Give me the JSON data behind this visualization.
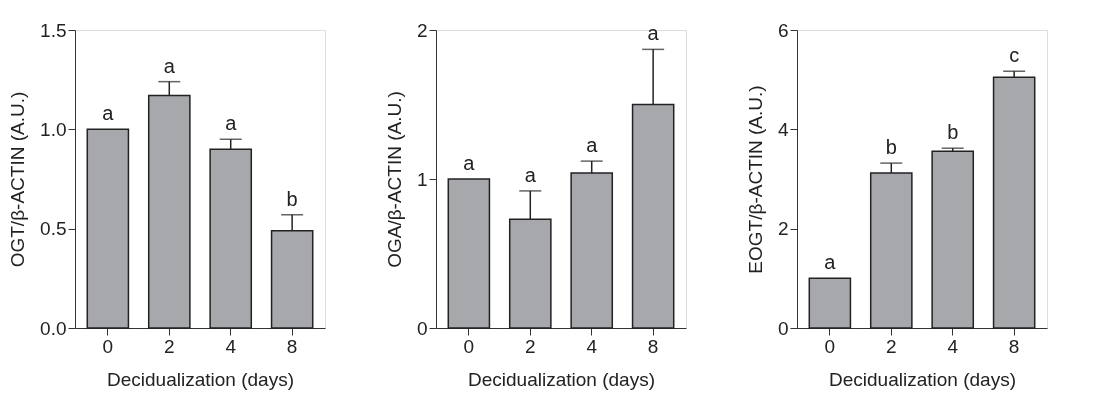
{
  "chart_data": [
    {
      "type": "bar",
      "xlabel": "Decidualization (days)",
      "ylabel": "OGT/β-ACTIN (A.U.)",
      "categories": [
        "0",
        "2",
        "4",
        "8"
      ],
      "values": [
        1.0,
        1.17,
        0.9,
        0.49
      ],
      "errors": [
        null,
        [
          1.17,
          1.24
        ],
        [
          0.9,
          0.95
        ],
        [
          0.49,
          0.57
        ]
      ],
      "color": "#a7a8ac",
      "ylim": [
        0,
        1.5
      ],
      "yticks": [
        {
          "value": 0,
          "label": "0.0"
        },
        {
          "value": 0.5,
          "label": "0.5"
        },
        {
          "value": 1,
          "label": "1.0"
        },
        {
          "value": 1.5,
          "label": "1.5"
        }
      ],
      "grid": false,
      "annotations": [
        {
          "text": "a",
          "x": "0",
          "y": 1.0
        },
        {
          "text": "a",
          "x": "2",
          "y": 1.24
        },
        {
          "text": "a",
          "x": "4",
          "y": 0.95
        },
        {
          "text": "b",
          "x": "8",
          "y": 0.57
        }
      ]
    },
    {
      "type": "bar",
      "xlabel": "Decidualization (days)",
      "ylabel": "OGA/β-ACTIN (A.U.)",
      "categories": [
        "0",
        "2",
        "4",
        "8"
      ],
      "values": [
        1.0,
        0.73,
        1.04,
        1.5
      ],
      "errors": [
        null,
        [
          0.73,
          0.92
        ],
        [
          1.04,
          1.12
        ],
        [
          1.5,
          1.87
        ]
      ],
      "color": "#a7a8ac",
      "ylim": [
        0,
        2
      ],
      "yticks": [
        0,
        1,
        2
      ],
      "grid": false,
      "annotations": [
        {
          "text": "a",
          "x": "0",
          "y": 1.0
        },
        {
          "text": "a",
          "x": "2",
          "y": 0.92
        },
        {
          "text": "a",
          "x": "4",
          "y": 1.12
        },
        {
          "text": "a",
          "x": "8",
          "y": 1.87
        }
      ]
    },
    {
      "type": "bar",
      "xlabel": "Decidualization (days)",
      "ylabel": "EOGT/β-ACTIN (A.U.)",
      "categories": [
        "0",
        "2",
        "4",
        "8"
      ],
      "values": [
        1.0,
        3.12,
        3.56,
        5.05
      ],
      "errors": [
        null,
        [
          3.12,
          3.32
        ],
        [
          3.56,
          3.62
        ],
        [
          5.05,
          5.17
        ]
      ],
      "color": "#a7a8ac",
      "ylim": [
        0,
        6
      ],
      "yticks": [
        0,
        2,
        4,
        6
      ],
      "grid": false,
      "annotations": [
        {
          "text": "a",
          "x": "0",
          "y": 1.0
        },
        {
          "text": "b",
          "x": "2",
          "y": 3.32
        },
        {
          "text": "b",
          "x": "4",
          "y": 3.62
        },
        {
          "text": "c",
          "x": "8",
          "y": 5.17
        }
      ]
    }
  ]
}
